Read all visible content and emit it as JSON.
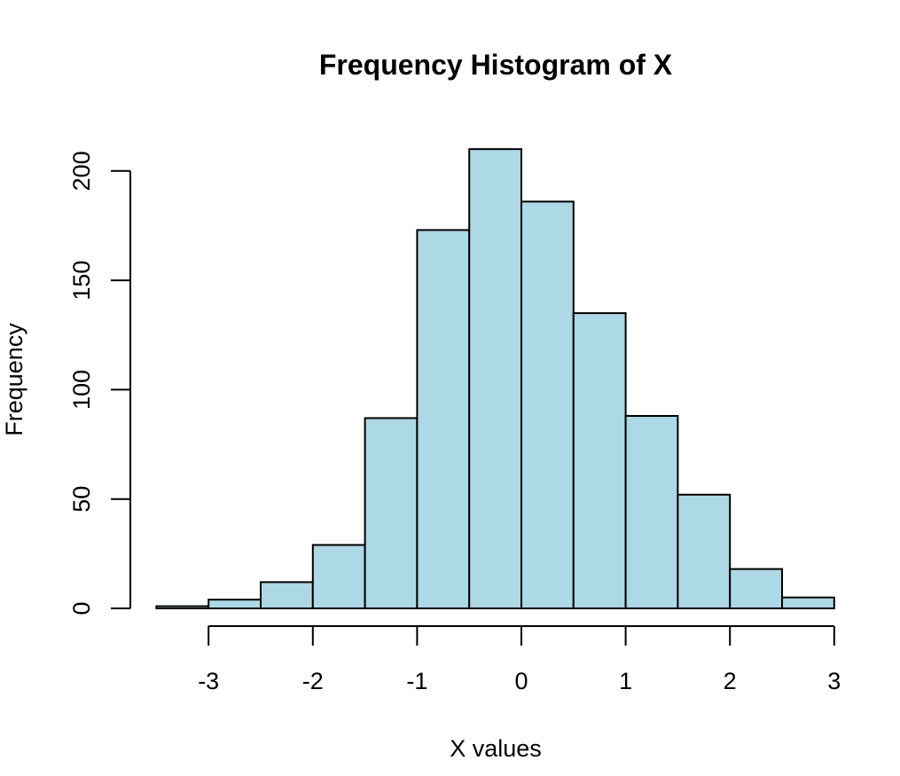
{
  "chart_data": {
    "type": "bar",
    "title": "Frequency Histogram of X",
    "xlabel": "X values",
    "ylabel": "Frequency",
    "bins": [
      {
        "from": -3.5,
        "to": -3.0,
        "count": 1
      },
      {
        "from": -3.0,
        "to": -2.5,
        "count": 4
      },
      {
        "from": -2.5,
        "to": -2.0,
        "count": 12
      },
      {
        "from": -2.0,
        "to": -1.5,
        "count": 29
      },
      {
        "from": -1.5,
        "to": -1.0,
        "count": 87
      },
      {
        "from": -1.0,
        "to": -0.5,
        "count": 173
      },
      {
        "from": -0.5,
        "to": 0.0,
        "count": 210
      },
      {
        "from": 0.0,
        "to": 0.5,
        "count": 186
      },
      {
        "from": 0.5,
        "to": 1.0,
        "count": 135
      },
      {
        "from": 1.0,
        "to": 1.5,
        "count": 88
      },
      {
        "from": 1.5,
        "to": 2.0,
        "count": 52
      },
      {
        "from": 2.0,
        "to": 2.5,
        "count": 18
      },
      {
        "from": 2.5,
        "to": 3.0,
        "count": 5
      }
    ],
    "xticks": [
      -3,
      -2,
      -1,
      0,
      1,
      2,
      3
    ],
    "xtick_labels": [
      "-3",
      "-2",
      "-1",
      "0",
      "1",
      "2",
      "3"
    ],
    "yticks": [
      0,
      50,
      100,
      150,
      200
    ],
    "ytick_labels": [
      "0",
      "50",
      "100",
      "150",
      "200"
    ],
    "xlim": [
      -3.5,
      3.0
    ],
    "ylim": [
      0,
      210
    ],
    "grid": false,
    "bar_color": "#add8e6",
    "edge_color": "#000000"
  }
}
